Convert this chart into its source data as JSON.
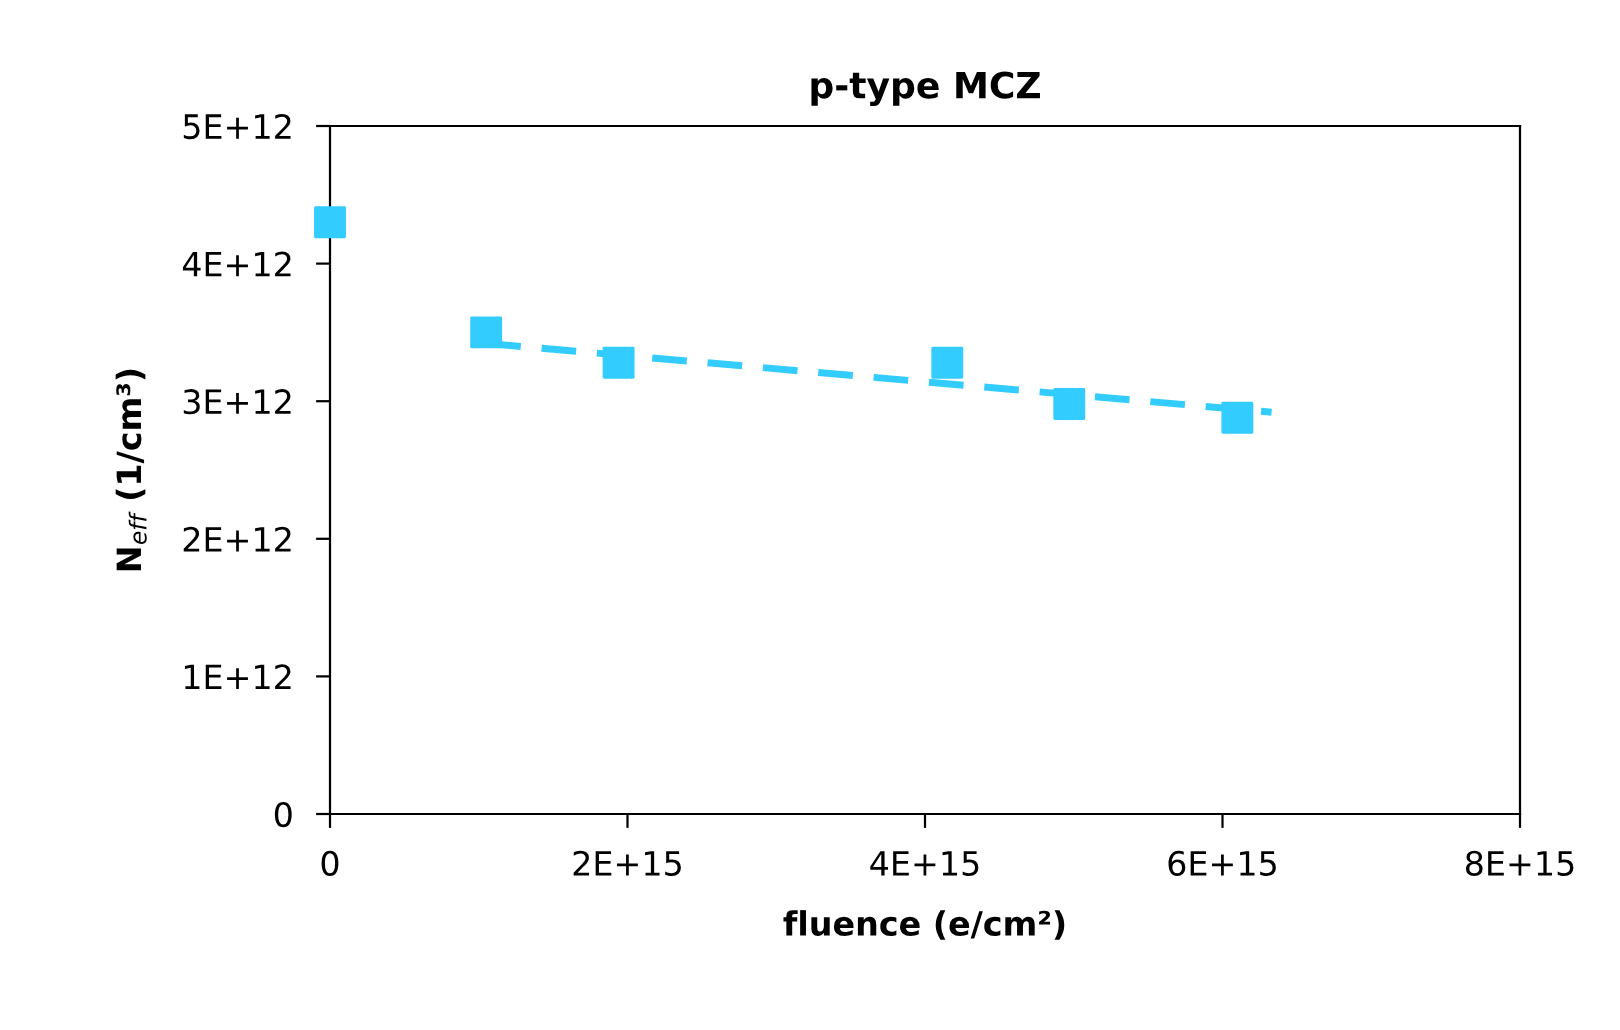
{
  "chart_data": {
    "type": "scatter",
    "title": "p-type MCZ",
    "xlabel": "fluence (e/cm²)",
    "ylabel": "N$_{eff}$ (1/cm³)",
    "series": [
      {
        "color": "#33ccff",
        "marker": "square",
        "x": [
          0,
          1050000000000000.0,
          1940000000000000.0,
          4150000000000000.0,
          4970000000000000.0,
          6100000000000000.0
        ],
        "values": [
          4300000000000.0,
          3500000000000.0,
          3280000000000.0,
          3280000000000.0,
          2980000000000.0,
          2880000000000.0
        ]
      },
      {
        "type": "line",
        "color": "#33ccff",
        "line_style": "dashed",
        "x": [
          1050000000000000.0,
          6330000000000000.0
        ],
        "values": [
          3420000000000.0,
          2920000000000.0
        ]
      }
    ],
    "xlim": [
      0,
      8000000000000000.0
    ],
    "ylim": [
      0,
      5000000000000.0
    ],
    "xticks": [
      {
        "value": 0,
        "label": "0"
      },
      {
        "value": 2000000000000000.0,
        "label": "2E+15"
      },
      {
        "value": 4000000000000000.0,
        "label": "4E+15"
      },
      {
        "value": 6000000000000000.0,
        "label": "6E+15"
      },
      {
        "value": 8000000000000000.0,
        "label": "8E+15"
      }
    ],
    "yticks": [
      {
        "value": 0,
        "label": "0"
      },
      {
        "value": 1000000000000.0,
        "label": "1E+12"
      },
      {
        "value": 2000000000000.0,
        "label": "2E+12"
      },
      {
        "value": 3000000000000.0,
        "label": "3E+12"
      },
      {
        "value": 4000000000000.0,
        "label": "4E+12"
      },
      {
        "value": 5000000000000.0,
        "label": "5E+12"
      }
    ],
    "grid": false,
    "legend": false
  }
}
